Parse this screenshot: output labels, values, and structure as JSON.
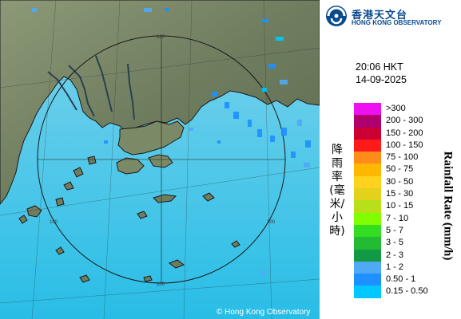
{
  "observatory": {
    "name_cn": "香港天文台",
    "name_en": "HONG KONG OBSERVATORY",
    "emblem_icon": "hko-logo-icon"
  },
  "timestamp": {
    "time": "20:06 HKT",
    "date": "14-09-2025"
  },
  "legend": {
    "title_cn": "降雨率(毫米/小時)",
    "title_en": "Rainfall Rate (mm/h)",
    "items": [
      {
        "label": ">300",
        "color": "#ee10ee"
      },
      {
        "label": "200 - 300",
        "color": "#b0006e"
      },
      {
        "label": "150 - 200",
        "color": "#cc0033"
      },
      {
        "label": "100 - 150",
        "color": "#ff1a1a"
      },
      {
        "label": "75 - 100",
        "color": "#ff8c1a"
      },
      {
        "label": "50 - 75",
        "color": "#ffb800"
      },
      {
        "label": "30 - 50",
        "color": "#ffd21f"
      },
      {
        "label": "15 - 30",
        "color": "#e2d21c"
      },
      {
        "label": "10 - 15",
        "color": "#b8e01a"
      },
      {
        "label": "7 - 10",
        "color": "#7fff00"
      },
      {
        "label": "5 - 7",
        "color": "#33dd22"
      },
      {
        "label": "3 - 5",
        "color": "#22bb33"
      },
      {
        "label": "2 - 3",
        "color": "#119944"
      },
      {
        "label": "1 - 2",
        "color": "#4faaf5"
      },
      {
        "label": "0.50 - 1",
        "color": "#1e90ff"
      },
      {
        "label": "0.15 - 0.50",
        "color": "#00c8ff"
      }
    ]
  },
  "radar": {
    "range_ring_label": "100"
  },
  "copyright": "© Hong Kong Observatory"
}
